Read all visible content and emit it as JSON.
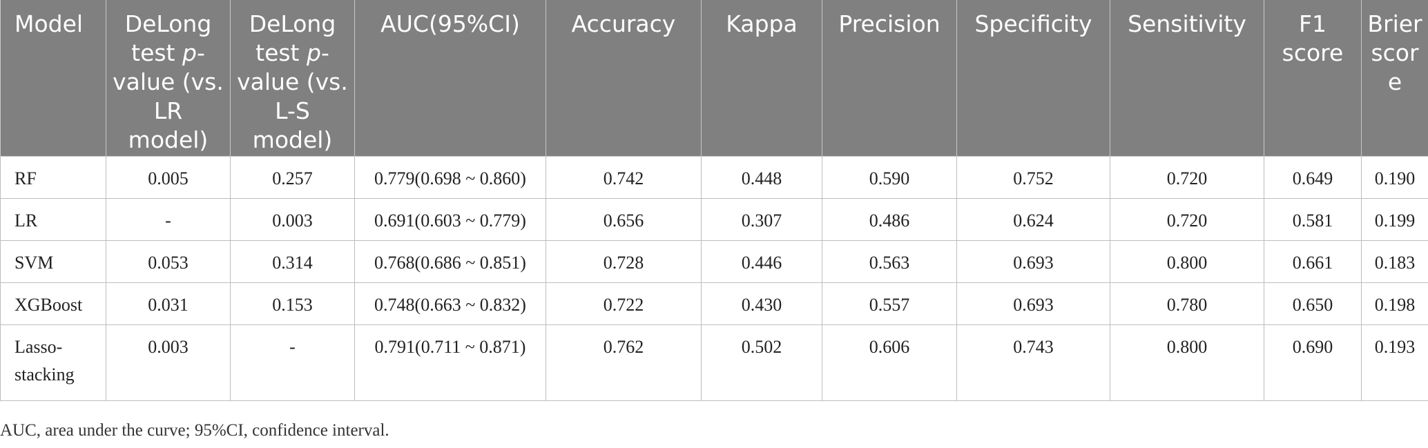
{
  "table": {
    "headers": {
      "model": "Model",
      "delong_lr_pre": "DeLong test ",
      "delong_lr_p": "p",
      "delong_lr_post": "-value (vs. LR model)",
      "delong_ls_pre": "DeLong test ",
      "delong_ls_p": "p",
      "delong_ls_post": "-value (vs. L-S model)",
      "auc": "AUC(95%CI)",
      "accuracy": "Accuracy",
      "kappa": "Kappa",
      "precision": "Precision",
      "specificity": "Specificity",
      "sensitivity": "Sensitivity",
      "f1": "F1 score",
      "brier": "Brier score"
    },
    "rows": [
      {
        "model": "RF",
        "delong_lr": "0.005",
        "delong_ls": "0.257",
        "auc": "0.779(0.698 ~ 0.860)",
        "accuracy": "0.742",
        "kappa": "0.448",
        "precision": "0.590",
        "specificity": "0.752",
        "sensitivity": "0.720",
        "f1": "0.649",
        "brier": "0.190"
      },
      {
        "model": "LR",
        "delong_lr": "-",
        "delong_ls": "0.003",
        "auc": "0.691(0.603 ~ 0.779)",
        "accuracy": "0.656",
        "kappa": "0.307",
        "precision": "0.486",
        "specificity": "0.624",
        "sensitivity": "0.720",
        "f1": "0.581",
        "brier": "0.199"
      },
      {
        "model": "SVM",
        "delong_lr": "0.053",
        "delong_ls": "0.314",
        "auc": "0.768(0.686 ~ 0.851)",
        "accuracy": "0.728",
        "kappa": "0.446",
        "precision": "0.563",
        "specificity": "0.693",
        "sensitivity": "0.800",
        "f1": "0.661",
        "brier": "0.183"
      },
      {
        "model": "XGBoost",
        "delong_lr": "0.031",
        "delong_ls": "0.153",
        "auc": "0.748(0.663 ~ 0.832)",
        "accuracy": "0.722",
        "kappa": "0.430",
        "precision": "0.557",
        "specificity": "0.693",
        "sensitivity": "0.780",
        "f1": "0.650",
        "brier": "0.198"
      },
      {
        "model": "Lasso-stacking",
        "delong_lr": "0.003",
        "delong_ls": "-",
        "auc": "0.791(0.711 ~ 0.871)",
        "accuracy": "0.762",
        "kappa": "0.502",
        "precision": "0.606",
        "specificity": "0.743",
        "sensitivity": "0.800",
        "f1": "0.690",
        "brier": "0.193"
      }
    ]
  },
  "footnote": "AUC, area under the curve; 95%CI, confidence interval."
}
